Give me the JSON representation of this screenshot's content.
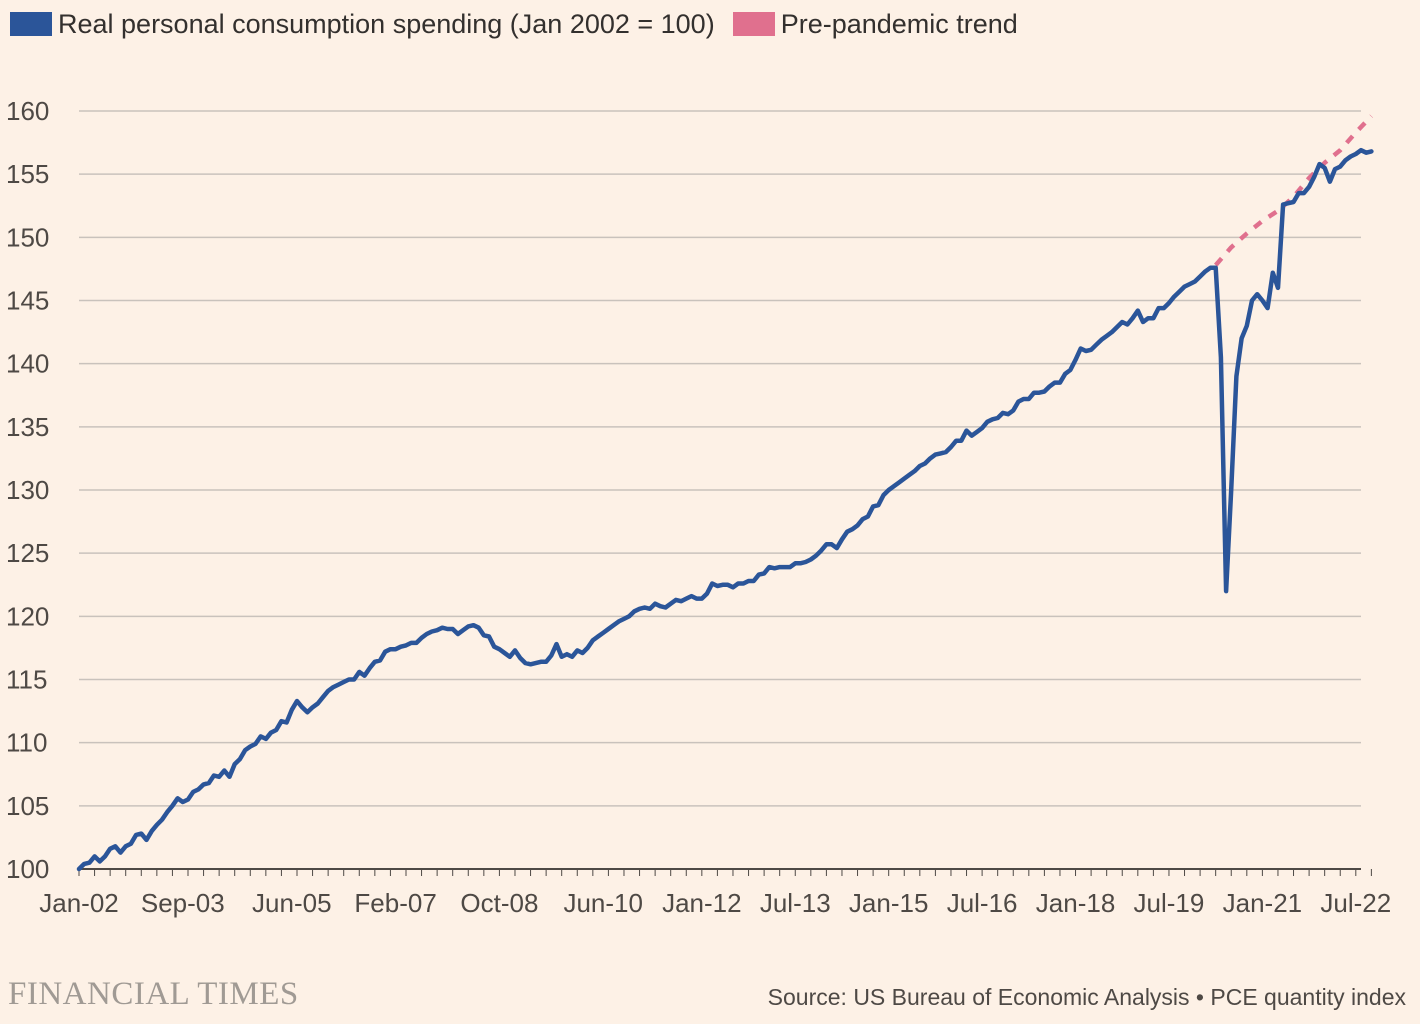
{
  "branding": {
    "logo_text": "FINANCIAL TIMES"
  },
  "source_text": "Source: US Bureau of Economic Analysis • PCE quantity index",
  "legend": [
    {
      "label": "Real personal consumption spending (Jan 2002 = 100)",
      "color": "#2b5599"
    },
    {
      "label": "Pre-pandemic trend",
      "color": "#e0708e"
    }
  ],
  "colors": {
    "background": "#fdf1e6",
    "grid": "#c9c2bc",
    "axis": "#4e4945"
  },
  "chart_data": {
    "type": "line",
    "title": "",
    "xlabel": "",
    "ylabel": "",
    "x_unit": "months since Jan-02",
    "xlim": [
      0,
      247
    ],
    "ylim": [
      100,
      160
    ],
    "y_ticks": [
      100,
      105,
      110,
      115,
      120,
      125,
      130,
      135,
      140,
      145,
      150,
      155,
      160
    ],
    "x_ticks": [
      {
        "x": 0,
        "label": "Jan-02"
      },
      {
        "x": 20,
        "label": "Sep-03"
      },
      {
        "x": 41,
        "label": "Jun-05"
      },
      {
        "x": 61,
        "label": "Feb-07"
      },
      {
        "x": 81,
        "label": "Oct-08"
      },
      {
        "x": 101,
        "label": "Jun-10"
      },
      {
        "x": 120,
        "label": "Jan-12"
      },
      {
        "x": 138,
        "label": "Jul-13"
      },
      {
        "x": 156,
        "label": "Jan-15"
      },
      {
        "x": 174,
        "label": "Jul-16"
      },
      {
        "x": 192,
        "label": "Jan-18"
      },
      {
        "x": 210,
        "label": "Jul-19"
      },
      {
        "x": 228,
        "label": "Jan-21"
      },
      {
        "x": 246,
        "label": "Jul-22"
      }
    ],
    "grid": true,
    "legend_position": "top-left",
    "series": [
      {
        "name": "Real personal consumption spending (Jan 2002 = 100)",
        "style": "solid",
        "points": [
          [
            0,
            100
          ],
          [
            1,
            100.4
          ],
          [
            2,
            100.5
          ],
          [
            3,
            101
          ],
          [
            4,
            100.6
          ],
          [
            5,
            101
          ],
          [
            6,
            101.6
          ],
          [
            7,
            101.8
          ],
          [
            8,
            101.3
          ],
          [
            9,
            101.8
          ],
          [
            10,
            102
          ],
          [
            11,
            102.7
          ],
          [
            12,
            102.8
          ],
          [
            13,
            102.3
          ],
          [
            14,
            103
          ],
          [
            15,
            103.5
          ],
          [
            16,
            103.9
          ],
          [
            17,
            104.5
          ],
          [
            18,
            105
          ],
          [
            19,
            105.6
          ],
          [
            20,
            105.3
          ],
          [
            21,
            105.5
          ],
          [
            22,
            106.1
          ],
          [
            23,
            106.3
          ],
          [
            24,
            106.7
          ],
          [
            25,
            106.8
          ],
          [
            26,
            107.4
          ],
          [
            27,
            107.3
          ],
          [
            28,
            107.8
          ],
          [
            29,
            107.3
          ],
          [
            30,
            108.3
          ],
          [
            31,
            108.7
          ],
          [
            32,
            109.4
          ],
          [
            33,
            109.7
          ],
          [
            34,
            109.9
          ],
          [
            35,
            110.5
          ],
          [
            36,
            110.3
          ],
          [
            37,
            110.8
          ],
          [
            38,
            111
          ],
          [
            39,
            111.7
          ],
          [
            40,
            111.6
          ],
          [
            41,
            112.6
          ],
          [
            42,
            113.3
          ],
          [
            43,
            112.8
          ],
          [
            44,
            112.4
          ],
          [
            45,
            112.8
          ],
          [
            46,
            113.1
          ],
          [
            47,
            113.6
          ],
          [
            48,
            114.1
          ],
          [
            49,
            114.4
          ],
          [
            50,
            114.6
          ],
          [
            51,
            114.8
          ],
          [
            52,
            115
          ],
          [
            53,
            115
          ],
          [
            54,
            115.6
          ],
          [
            55,
            115.3
          ],
          [
            56,
            115.9
          ],
          [
            57,
            116.4
          ],
          [
            58,
            116.5
          ],
          [
            59,
            117.2
          ],
          [
            60,
            117.4
          ],
          [
            61,
            117.4
          ],
          [
            62,
            117.6
          ],
          [
            63,
            117.7
          ],
          [
            64,
            117.9
          ],
          [
            65,
            117.9
          ],
          [
            66,
            118.3
          ],
          [
            67,
            118.6
          ],
          [
            68,
            118.8
          ],
          [
            69,
            118.9
          ],
          [
            70,
            119.1
          ],
          [
            71,
            119
          ],
          [
            72,
            119
          ],
          [
            73,
            118.6
          ],
          [
            74,
            118.9
          ],
          [
            75,
            119.2
          ],
          [
            76,
            119.3
          ],
          [
            77,
            119.1
          ],
          [
            78,
            118.5
          ],
          [
            79,
            118.4
          ],
          [
            80,
            117.6
          ],
          [
            81,
            117.4
          ],
          [
            82,
            117.1
          ],
          [
            83,
            116.8
          ],
          [
            84,
            117.3
          ],
          [
            85,
            116.7
          ],
          [
            86,
            116.3
          ],
          [
            87,
            116.2
          ],
          [
            88,
            116.3
          ],
          [
            89,
            116.4
          ],
          [
            90,
            116.4
          ],
          [
            91,
            116.9
          ],
          [
            92,
            117.8
          ],
          [
            93,
            116.8
          ],
          [
            94,
            117
          ],
          [
            95,
            116.8
          ],
          [
            96,
            117.3
          ],
          [
            97,
            117.1
          ],
          [
            98,
            117.5
          ],
          [
            99,
            118.1
          ],
          [
            100,
            118.4
          ],
          [
            101,
            118.7
          ],
          [
            102,
            119
          ],
          [
            103,
            119.3
          ],
          [
            104,
            119.6
          ],
          [
            105,
            119.8
          ],
          [
            106,
            120
          ],
          [
            107,
            120.4
          ],
          [
            108,
            120.6
          ],
          [
            109,
            120.7
          ],
          [
            110,
            120.6
          ],
          [
            111,
            121
          ],
          [
            112,
            120.8
          ],
          [
            113,
            120.7
          ],
          [
            114,
            121
          ],
          [
            115,
            121.3
          ],
          [
            116,
            121.2
          ],
          [
            117,
            121.4
          ],
          [
            118,
            121.6
          ],
          [
            119,
            121.4
          ],
          [
            120,
            121.4
          ],
          [
            121,
            121.8
          ],
          [
            122,
            122.6
          ],
          [
            123,
            122.4
          ],
          [
            124,
            122.5
          ],
          [
            125,
            122.5
          ],
          [
            126,
            122.3
          ],
          [
            127,
            122.6
          ],
          [
            128,
            122.6
          ],
          [
            129,
            122.8
          ],
          [
            130,
            122.8
          ],
          [
            131,
            123.3
          ],
          [
            132,
            123.4
          ],
          [
            133,
            123.9
          ],
          [
            134,
            123.8
          ],
          [
            135,
            123.9
          ],
          [
            136,
            123.9
          ],
          [
            137,
            123.9
          ],
          [
            138,
            124.2
          ],
          [
            139,
            124.2
          ],
          [
            140,
            124.3
          ],
          [
            141,
            124.5
          ],
          [
            142,
            124.8
          ],
          [
            143,
            125.2
          ],
          [
            144,
            125.7
          ],
          [
            145,
            125.7
          ],
          [
            146,
            125.4
          ],
          [
            147,
            126.1
          ],
          [
            148,
            126.7
          ],
          [
            149,
            126.9
          ],
          [
            150,
            127.2
          ],
          [
            151,
            127.7
          ],
          [
            152,
            127.9
          ],
          [
            153,
            128.7
          ],
          [
            154,
            128.8
          ],
          [
            155,
            129.6
          ],
          [
            156,
            130
          ],
          [
            157,
            130.3
          ],
          [
            158,
            130.6
          ],
          [
            159,
            130.9
          ],
          [
            160,
            131.2
          ],
          [
            161,
            131.5
          ],
          [
            162,
            131.9
          ],
          [
            163,
            132.1
          ],
          [
            164,
            132.5
          ],
          [
            165,
            132.8
          ],
          [
            166,
            132.9
          ],
          [
            167,
            133
          ],
          [
            168,
            133.4
          ],
          [
            169,
            133.9
          ],
          [
            170,
            133.9
          ],
          [
            171,
            134.7
          ],
          [
            172,
            134.3
          ],
          [
            173,
            134.6
          ],
          [
            174,
            134.9
          ],
          [
            175,
            135.4
          ],
          [
            176,
            135.6
          ],
          [
            177,
            135.7
          ],
          [
            178,
            136.1
          ],
          [
            179,
            136
          ],
          [
            180,
            136.3
          ],
          [
            181,
            137
          ],
          [
            182,
            137.2
          ],
          [
            183,
            137.2
          ],
          [
            184,
            137.7
          ],
          [
            185,
            137.7
          ],
          [
            186,
            137.8
          ],
          [
            187,
            138.2
          ],
          [
            188,
            138.5
          ],
          [
            189,
            138.5
          ],
          [
            190,
            139.2
          ],
          [
            191,
            139.5
          ],
          [
            192,
            140.3
          ],
          [
            193,
            141.2
          ],
          [
            194,
            141
          ],
          [
            195,
            141.1
          ],
          [
            196,
            141.5
          ],
          [
            197,
            141.9
          ],
          [
            198,
            142.2
          ],
          [
            199,
            142.5
          ],
          [
            200,
            142.9
          ],
          [
            201,
            143.3
          ],
          [
            202,
            143.1
          ],
          [
            203,
            143.6
          ],
          [
            204,
            144.2
          ],
          [
            205,
            143.3
          ],
          [
            206,
            143.6
          ],
          [
            207,
            143.6
          ],
          [
            208,
            144.4
          ],
          [
            209,
            144.4
          ],
          [
            210,
            144.8
          ],
          [
            211,
            145.3
          ],
          [
            212,
            145.7
          ],
          [
            213,
            146.1
          ],
          [
            214,
            146.3
          ],
          [
            215,
            146.5
          ],
          [
            216,
            146.9
          ],
          [
            217,
            147.3
          ],
          [
            218,
            147.6
          ],
          [
            219,
            147.6
          ],
          [
            220,
            140.5
          ],
          [
            221,
            122
          ],
          [
            222,
            130
          ],
          [
            223,
            139
          ],
          [
            224,
            142
          ],
          [
            225,
            143
          ],
          [
            226,
            145
          ],
          [
            227,
            145.5
          ],
          [
            228,
            145
          ],
          [
            229,
            144.4
          ],
          [
            230,
            147.2
          ],
          [
            231,
            146
          ],
          [
            232,
            152.6
          ],
          [
            233,
            152.7
          ],
          [
            234,
            152.8
          ],
          [
            235,
            153.5
          ],
          [
            236,
            153.5
          ],
          [
            237,
            154
          ],
          [
            238,
            154.8
          ],
          [
            239,
            155.8
          ],
          [
            240,
            155.5
          ],
          [
            241,
            154.4
          ],
          [
            242,
            155.4
          ],
          [
            243,
            155.6
          ],
          [
            244,
            156.1
          ],
          [
            245,
            156.4
          ],
          [
            246,
            156.6
          ],
          [
            247,
            156.9
          ],
          [
            248,
            156.7
          ],
          [
            249,
            156.8
          ]
        ]
      },
      {
        "name": "Pre-pandemic trend",
        "style": "dashed",
        "points": [
          [
            219,
            147.8
          ],
          [
            222,
            149.2
          ],
          [
            225,
            150.3
          ],
          [
            228,
            151.3
          ],
          [
            231,
            152.1
          ],
          [
            234,
            153.2
          ],
          [
            237,
            154.7
          ],
          [
            240,
            155.9
          ],
          [
            243,
            156.9
          ],
          [
            246,
            158.3
          ],
          [
            249,
            159.6
          ]
        ]
      }
    ]
  }
}
